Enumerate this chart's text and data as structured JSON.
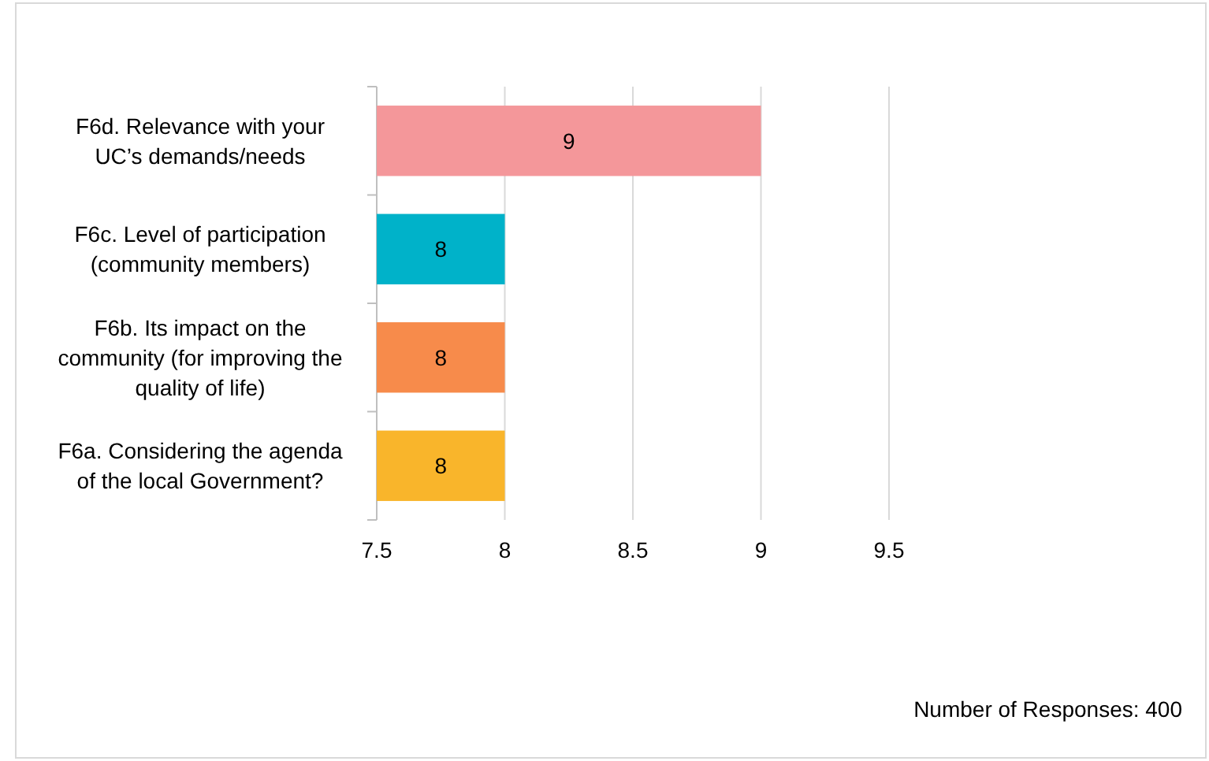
{
  "chart_data": {
    "type": "bar",
    "orientation": "horizontal",
    "categories": [
      "F6d. Relevance with your UC’s demands/needs",
      "F6c. Level of participation (community members)",
      "F6b. Its impact on the community (for improving the quality of life)",
      "F6a. Considering the agenda of the local Government?"
    ],
    "values": [
      9,
      8,
      8,
      8
    ],
    "colors": [
      "#f4979a",
      "#00b2c9",
      "#f78b4b",
      "#f9b52b"
    ],
    "xlim": [
      7.5,
      9.5
    ],
    "xticks": [
      7.5,
      8,
      8.5,
      9,
      9.5
    ],
    "grid": "x",
    "data_labels": true,
    "annotations": [
      "Number of Responses: 400"
    ]
  }
}
